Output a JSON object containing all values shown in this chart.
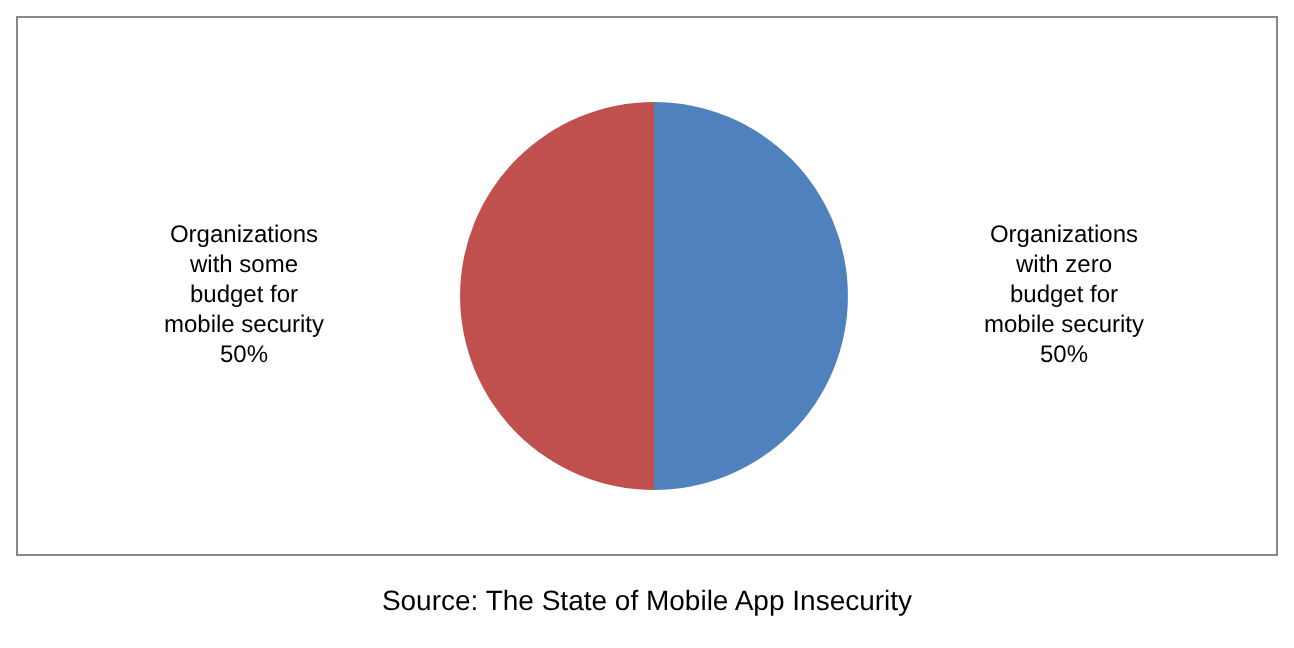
{
  "chart_data": {
    "type": "pie",
    "categories": [
      "Organizations with zero budget for mobile security",
      "Organizations with some budget for mobile security"
    ],
    "values": [
      50,
      50
    ],
    "colors": [
      "#4f81bd",
      "#c0504d"
    ],
    "value_labels": [
      "50%",
      "50%"
    ],
    "legend": false,
    "annotations": [
      "Source: The State of Mobile App Insecurity"
    ]
  }
}
